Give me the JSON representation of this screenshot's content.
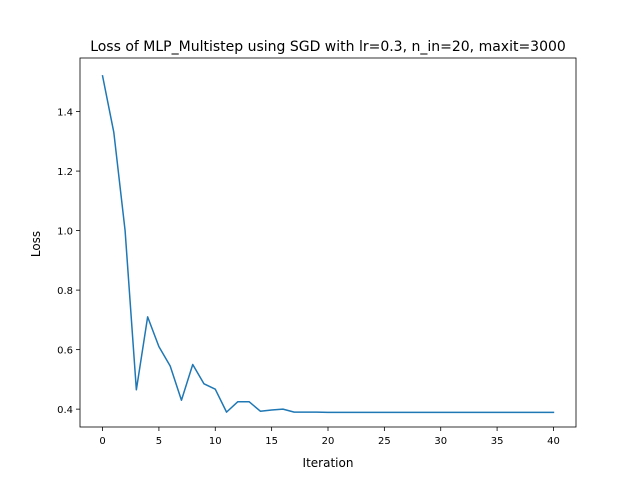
{
  "chart_data": {
    "type": "line",
    "title": "Loss of MLP_Multistep using SGD with lr=0.3, n_in=20, maxit=3000",
    "xlabel": "Iteration",
    "ylabel": "Loss",
    "xlim": [
      -2,
      42
    ],
    "ylim": [
      0.34,
      1.58
    ],
    "xticks": [
      0,
      5,
      10,
      15,
      20,
      25,
      30,
      35,
      40
    ],
    "yticks": [
      0.4,
      0.6,
      0.8,
      1.0,
      1.2,
      1.4
    ],
    "ytick_labels": [
      "0.4",
      "0.6",
      "0.8",
      "1.0",
      "1.2",
      "1.4"
    ],
    "grid": false,
    "series": [
      {
        "color": "#1f77b4",
        "x": [
          0,
          1,
          2,
          3,
          4,
          5,
          6,
          7,
          8,
          9,
          10,
          11,
          12,
          13,
          14,
          15,
          16,
          17,
          18,
          19,
          20,
          21,
          22,
          23,
          24,
          25,
          26,
          27,
          28,
          29,
          30,
          31,
          32,
          33,
          34,
          35,
          36,
          37,
          38,
          39,
          40
        ],
        "y": [
          1.52,
          1.33,
          1.0,
          0.465,
          0.71,
          0.61,
          0.545,
          0.43,
          0.55,
          0.485,
          0.467,
          0.39,
          0.425,
          0.425,
          0.393,
          0.397,
          0.4,
          0.39,
          0.39,
          0.39,
          0.389,
          0.389,
          0.389,
          0.389,
          0.389,
          0.389,
          0.389,
          0.389,
          0.389,
          0.389,
          0.389,
          0.389,
          0.389,
          0.389,
          0.389,
          0.389,
          0.389,
          0.389,
          0.389,
          0.389,
          0.389
        ]
      }
    ]
  }
}
